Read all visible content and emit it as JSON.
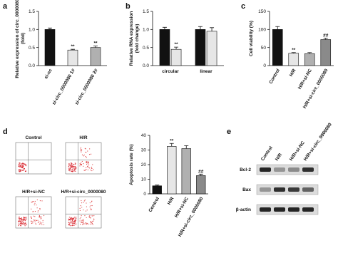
{
  "panel_labels": [
    "a",
    "b",
    "c",
    "d",
    "e"
  ],
  "chart_data": [
    {
      "type": "bar",
      "y_label": [
        "Relative expression of circ_0000080",
        "(fold)"
      ],
      "categories": [
        "si-nc",
        "si-circ_0000080 1#",
        "si-circ_0000080 2#"
      ],
      "series": [
        {
          "values": [
            1.0,
            0.43,
            0.5
          ],
          "errors": [
            0.04,
            0.02,
            0.04
          ],
          "colors": [
            "#111111",
            "#e6e6e6",
            "#b0b0b0"
          ],
          "annotations": [
            null,
            "**",
            "**"
          ]
        }
      ],
      "ylim": [
        0,
        1.5
      ],
      "yticks": [
        {
          "value": 0,
          "label": "0.0"
        },
        0.5,
        {
          "value": 1,
          "label": "1.0"
        },
        1.5
      ]
    },
    {
      "type": "bar",
      "y_label": [
        "Relative RNA expression",
        "(fold change)"
      ],
      "categories": [
        "circular",
        "linear"
      ],
      "series": [
        {
          "values": [
            1.0,
            1.0
          ],
          "errors": [
            0.06,
            0.08
          ],
          "color": "#111111",
          "annotations": [
            null,
            null
          ]
        },
        {
          "values": [
            0.45,
            0.95
          ],
          "errors": [
            0.06,
            0.1
          ],
          "color": "#e6e6e6",
          "annotations": [
            "**",
            null
          ]
        }
      ],
      "ylim": [
        0,
        1.5
      ],
      "yticks": [
        {
          "value": 0,
          "label": "0.0"
        },
        0.5,
        {
          "value": 1,
          "label": "1.0"
        },
        1.5
      ]
    },
    {
      "type": "bar",
      "y_label": [
        "Cell viability (%)"
      ],
      "categories": [
        "Control",
        "H/R",
        "H/R+si-NC",
        "H/R+si-circ_0000080"
      ],
      "series": [
        {
          "values": [
            100,
            34,
            33,
            72
          ],
          "errors": [
            8,
            2,
            3,
            4
          ],
          "colors": [
            "#111111",
            "#e6e6e6",
            "#b0b0b0",
            "#8a8a8a"
          ],
          "annotations": [
            null,
            "**",
            null,
            "##"
          ]
        }
      ],
      "ylim": [
        0,
        150
      ],
      "yticks": [
        0,
        50,
        100,
        150
      ]
    },
    {
      "type": "bar",
      "y_label": [
        "Apoptosis rate (%)"
      ],
      "categories": [
        "Control",
        "H/R",
        "H/R+si-NC",
        "H/R+si-circ_0000080"
      ],
      "series": [
        {
          "values": [
            5.5,
            32.5,
            31,
            12.5
          ],
          "errors": [
            0.5,
            2,
            2,
            1
          ],
          "colors": [
            "#111111",
            "#e6e6e6",
            "#b0b0b0",
            "#8a8a8a"
          ],
          "annotations": [
            null,
            "**",
            null,
            "##"
          ]
        }
      ],
      "ylim": [
        0,
        40
      ],
      "yticks": [
        0,
        10,
        20,
        30,
        40
      ]
    }
  ],
  "flow_cytometry": {
    "labels": [
      "Control",
      "H/R",
      "H/R+si-NC",
      "H/R+si-circ_0000080"
    ]
  },
  "western_blot": {
    "lanes": [
      "Control",
      "H/R",
      "H/R+si-NC",
      "H/R+si-circ_0000080"
    ],
    "proteins": [
      "Bcl-2",
      "Bax",
      "β-actin"
    ]
  }
}
